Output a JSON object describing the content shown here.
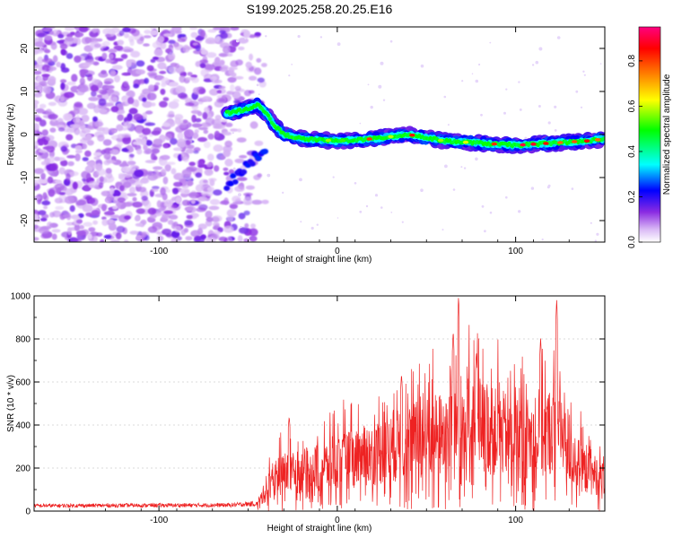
{
  "chart_data": [
    {
      "type": "heatmap",
      "title": "S199.2025.258.20.25.E16",
      "xlabel": "Height of straight line (km)",
      "ylabel": "Frequency (Hz)",
      "xlim": [
        -170,
        150
      ],
      "ylim": [
        -25,
        25
      ],
      "xticks": [
        -100,
        0,
        100
      ],
      "yticks": [
        -20,
        -10,
        0,
        10,
        20
      ],
      "colorbar": {
        "label": "Normalized spectral amplitude",
        "range": [
          0.0,
          0.95
        ],
        "ticks": [
          0.0,
          0.2,
          0.4,
          0.6,
          0.8
        ],
        "colormap": [
          "#ffffff",
          "#8a2be2",
          "#0000ff",
          "#00ffff",
          "#00ff00",
          "#ffff00",
          "#ff8000",
          "#ff0000",
          "#ff0080"
        ]
      },
      "ridge": {
        "x": [
          -60,
          -50,
          -45,
          -40,
          -35,
          -30,
          -20,
          0,
          20,
          40,
          60,
          80,
          100,
          120,
          140,
          150
        ],
        "frequency": [
          5,
          6,
          7,
          5,
          2,
          0,
          -1,
          -1.5,
          -1,
          0,
          -1.5,
          -2,
          -2.5,
          -2,
          -1.5,
          -1
        ]
      },
      "noise_region_x": [
        -170,
        -60
      ]
    },
    {
      "type": "line",
      "xlabel": "Height of straight line (km)",
      "ylabel": "SNR (10 * v/v)",
      "xlim": [
        -170,
        150
      ],
      "ylim": [
        0,
        1000
      ],
      "xticks": [
        -100,
        0,
        100
      ],
      "yticks": [
        0,
        200,
        400,
        600,
        800,
        1000
      ],
      "color": "#ee2222",
      "envelope": {
        "x": [
          -170,
          -60,
          -45,
          -40,
          -35,
          -20,
          0,
          20,
          40,
          60,
          68,
          80,
          100,
          115,
          122,
          130,
          140,
          150
        ],
        "level": [
          25,
          28,
          35,
          120,
          200,
          230,
          280,
          330,
          400,
          450,
          520,
          480,
          430,
          420,
          500,
          330,
          220,
          200
        ]
      },
      "peaks": [
        {
          "x": 68,
          "y": 1000
        },
        {
          "x": 123,
          "y": 990
        },
        {
          "x": 65,
          "y": 840
        },
        {
          "x": 78,
          "y": 740
        },
        {
          "x": 114,
          "y": 810
        },
        {
          "x": 36,
          "y": 640
        },
        {
          "x": -27,
          "y": 440
        }
      ]
    }
  ]
}
